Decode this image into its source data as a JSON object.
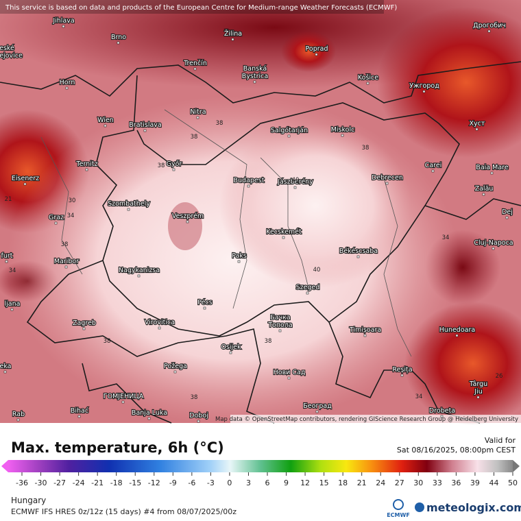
{
  "header": {
    "attribution": "This service is based on data and products of the European Centre for Medium-range Weather Forecasts (ECMWF)"
  },
  "map": {
    "credit": "Map data © OpenStreetMap contributors, rendering GIScience Research Group @ Heidelberg University",
    "cities": [
      "Jihlava",
      "Brno",
      "Žilina",
      "Poprad",
      "Дрогобич",
      "eské",
      "ejovice",
      "Trenčín",
      "Banská",
      "Bystrica",
      "Košice",
      "Ужгород",
      "Horn",
      "Nitra",
      "Wien",
      "Bratislava",
      "Хуст",
      "Salgótarján",
      "Miskolc",
      "Ternitz",
      "Győr",
      "Carei",
      "Baia Mare",
      "Budapest",
      "Jászberény",
      "Debrecen",
      "Eisenerz",
      "Szombathely",
      "Zalău",
      "Graz",
      "Veszprém",
      "Dej",
      "Kecskemét",
      "Cluj-Napoca",
      "furt",
      "Paks",
      "Békéscsaba",
      "Maribor",
      "Nagykanizsa",
      "ljana",
      "Szeged",
      "Pécs",
      "Zagreb",
      "Virovitica",
      "Бачка",
      "Топола",
      "Timișoara",
      "Hunedoara",
      "Osijek",
      "eka",
      "Požega",
      "Reșița",
      "Нови Сад",
      "Târgu",
      "Jiu",
      "ГОМЈЕНИЦА",
      "Bihać",
      "Banja Luka",
      "Doboj",
      "Rab",
      "Београд",
      "Drobeta"
    ],
    "contour_labels": [
      38,
      38,
      38,
      38,
      40,
      38,
      34,
      40,
      34,
      38,
      38,
      34,
      26,
      21,
      38,
      30,
      34
    ]
  },
  "legend": {
    "title": "Max. temperature, 6h (°C)",
    "valid_label": "Valid for",
    "valid_time": "Sat 08/16/2025, 08:00pm CEST",
    "ticks": [
      -36,
      -30,
      -27,
      -24,
      -21,
      -18,
      -15,
      -12,
      -9,
      -6,
      -3,
      0,
      3,
      6,
      9,
      12,
      15,
      18,
      21,
      24,
      27,
      30,
      33,
      36,
      39,
      44,
      50
    ]
  },
  "footer": {
    "region": "Hungary",
    "model_run": "ECMWF IFS HRES 0z/12z (15 days) #4 from  08/07/2025/00z",
    "ecmwf": "ECMWF",
    "brand": "meteologix.com"
  }
}
